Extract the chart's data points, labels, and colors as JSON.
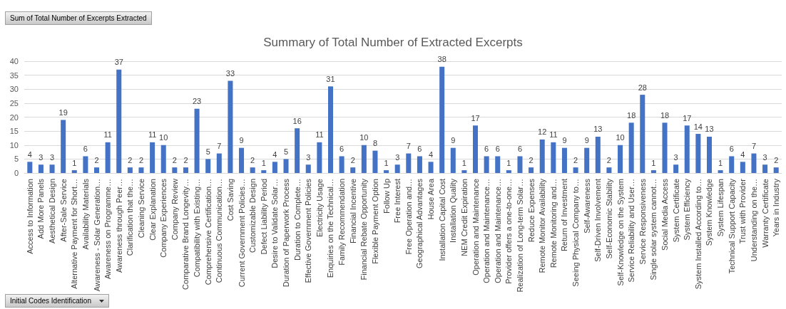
{
  "chart_data": {
    "type": "bar",
    "title": "Summary of Total Number of Extracted Excerpts",
    "categories": [
      "Access to Information",
      "Add More Panels",
      "Aesthetical Design",
      "After-Sale Service",
      "Alternative Payment for Short…",
      "Availability Materials",
      "Awareness - Solar Generation…",
      "Awareness on Programme…",
      "Awareness through Peer…",
      "Clarification that the…",
      "Cleaning Service",
      "Clear Explanation",
      "Company Experiences",
      "Company Review",
      "Comparative Brand Longevity…",
      "Compatibility with Existing…",
      "Comprehensive Certification…",
      "Continuous Communication…",
      "Cost Saving",
      "Current Government Policies…",
      "Customizable Design",
      "Defect Liability Period",
      "Desire to Validate Solar…",
      "Duration of Paperwork Process",
      "Duration to Complete…",
      "Effective Government Policies",
      "Electricity Usage",
      "Enquiries on the Technical…",
      "Family Recommendation",
      "Financial Incentive",
      "Financial Rebate Opportunity",
      "Flexible Payment Option",
      "Follow Up",
      "Free Interest",
      "Free Operation and…",
      "Geographical Advantages",
      "House Area",
      "Installation Capital Cost",
      "Installation Quality",
      "NEM Credit Expiration",
      "Operation and Maintenance",
      "Operation and Maintenance…",
      "Operation and Maintenance…",
      "Provider offers a one-to-one…",
      "Realization of Long-term Solar…",
      "Reduce Expenses",
      "Remote Monitor Availability",
      "Remote Monitoring and…",
      "Return of Investment",
      "Seeing Physical Company to…",
      "Self-Awareness",
      "Self-Driven Involvement",
      "Self-Economic Stability",
      "Self-Knowledge on the System",
      "Service Reliability and User…",
      "Service Responsiveness",
      "Single solar system cannot…",
      "Social Media Access",
      "System Certificate",
      "System Efficiency",
      "System Installed According to…",
      "System Knowledge",
      "System Lifespan",
      "Technical Support Capacity",
      "Trust with Provider",
      "Understanding on the…",
      "Warranty Certificate",
      "Years in Industry"
    ],
    "values": [
      4,
      3,
      3,
      19,
      1,
      6,
      2,
      11,
      37,
      2,
      2,
      11,
      10,
      2,
      2,
      23,
      5,
      7,
      33,
      9,
      2,
      1,
      4,
      5,
      16,
      3,
      11,
      31,
      6,
      2,
      10,
      8,
      1,
      3,
      7,
      6,
      4,
      38,
      9,
      1,
      17,
      6,
      6,
      1,
      6,
      2,
      12,
      11,
      9,
      2,
      9,
      13,
      2,
      10,
      18,
      28,
      1,
      18,
      3,
      17,
      14,
      13,
      1,
      6,
      4,
      7,
      3,
      2
    ],
    "color": "#4472c4",
    "ylim": [
      0,
      40
    ],
    "yticks": [
      0,
      5,
      10,
      15,
      20,
      25,
      30,
      35,
      40
    ],
    "grid": "y",
    "data_labels": true,
    "annotations": [
      "Sum of Total Number of Excerpts Extracted",
      "Initial Codes Identification"
    ]
  }
}
